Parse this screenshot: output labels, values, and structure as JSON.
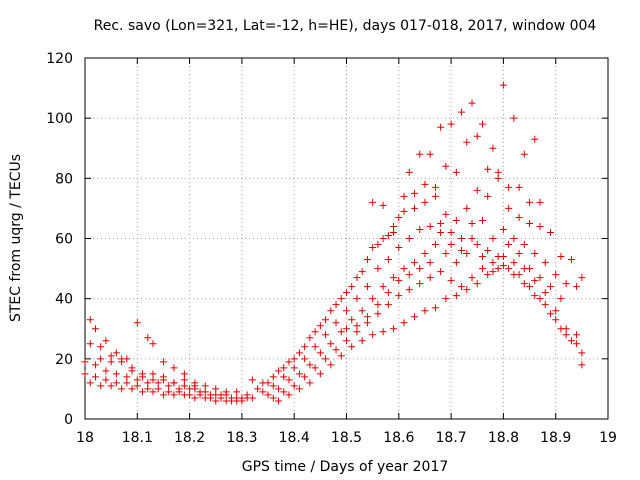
{
  "chart_data": {
    "type": "scatter",
    "title": "Rec. savo (Lon=321, Lat=-12, h=HE), days 017-018, 2017, window 004",
    "xlabel": "GPS time / Days of year 2017",
    "ylabel": "STEC from uqrg / TECUs",
    "xlim": [
      18,
      19
    ],
    "ylim": [
      0,
      120
    ],
    "x_ticks": [
      18,
      18.1,
      18.2,
      18.3,
      18.4,
      18.5,
      18.6,
      18.7,
      18.8,
      18.9,
      19
    ],
    "x_tick_labels": [
      "18",
      "18.1",
      "18.2",
      "18.3",
      "18.4",
      "18.5",
      "18.6",
      "18.7",
      "18.8",
      "18.9",
      "19"
    ],
    "y_ticks": [
      0,
      20,
      40,
      60,
      80,
      100,
      120
    ],
    "y_tick_labels": [
      "0",
      "20",
      "40",
      "60",
      "80",
      "100",
      "120"
    ],
    "grid": true,
    "marker": "+",
    "color": "#e00000",
    "series": [
      {
        "points": [
          [
            18.01,
            33
          ],
          [
            18.02,
            30
          ],
          [
            18.04,
            26
          ],
          [
            18.06,
            22
          ],
          [
            18.08,
            20
          ],
          [
            18.1,
            32
          ],
          [
            18.12,
            27
          ],
          [
            18.13,
            25
          ],
          [
            18.15,
            19
          ],
          [
            18.17,
            17
          ],
          [
            18.19,
            15
          ],
          [
            18.21,
            12
          ],
          [
            18.23,
            11
          ],
          [
            18.25,
            10
          ],
          [
            18.27,
            9
          ],
          [
            18.29,
            9
          ],
          [
            18.31,
            8
          ],
          [
            18.32,
            7
          ],
          [
            18.01,
            25
          ],
          [
            18.03,
            24
          ],
          [
            18.05,
            21
          ],
          [
            18.07,
            19
          ],
          [
            18.09,
            17
          ],
          [
            18.11,
            15
          ],
          [
            18.13,
            15
          ],
          [
            18.15,
            13
          ],
          [
            18.17,
            12
          ],
          [
            18.19,
            11
          ],
          [
            18.21,
            10
          ],
          [
            18.23,
            9
          ],
          [
            18.25,
            8
          ],
          [
            18.27,
            8
          ],
          [
            18.29,
            7
          ],
          [
            18.31,
            7
          ],
          [
            18.0,
            19
          ],
          [
            18.02,
            18
          ],
          [
            18.04,
            16
          ],
          [
            18.06,
            15
          ],
          [
            18.08,
            14
          ],
          [
            18.1,
            13
          ],
          [
            18.12,
            12
          ],
          [
            18.14,
            12
          ],
          [
            18.16,
            11
          ],
          [
            18.18,
            10
          ],
          [
            18.2,
            10
          ],
          [
            18.22,
            9
          ],
          [
            18.24,
            8
          ],
          [
            18.26,
            8
          ],
          [
            18.28,
            7
          ],
          [
            18.3,
            7
          ],
          [
            18.0,
            15
          ],
          [
            18.02,
            14
          ],
          [
            18.04,
            13
          ],
          [
            18.06,
            12
          ],
          [
            18.08,
            12
          ],
          [
            18.1,
            11
          ],
          [
            18.12,
            10
          ],
          [
            18.14,
            10
          ],
          [
            18.16,
            9
          ],
          [
            18.18,
            9
          ],
          [
            18.2,
            8
          ],
          [
            18.22,
            8
          ],
          [
            18.24,
            7
          ],
          [
            18.26,
            7
          ],
          [
            18.28,
            6
          ],
          [
            18.3,
            6
          ],
          [
            18.01,
            12
          ],
          [
            18.03,
            11
          ],
          [
            18.05,
            11
          ],
          [
            18.07,
            10
          ],
          [
            18.09,
            10
          ],
          [
            18.11,
            9
          ],
          [
            18.13,
            9
          ],
          [
            18.15,
            8
          ],
          [
            18.17,
            8
          ],
          [
            18.19,
            8
          ],
          [
            18.21,
            7
          ],
          [
            18.23,
            7
          ],
          [
            18.25,
            6
          ],
          [
            18.27,
            6
          ],
          [
            18.29,
            6
          ],
          [
            18.03,
            20
          ],
          [
            18.05,
            19
          ],
          [
            18.07,
            20
          ],
          [
            18.09,
            16
          ],
          [
            18.11,
            14
          ],
          [
            18.13,
            13
          ],
          [
            18.15,
            14
          ],
          [
            18.17,
            12
          ],
          [
            18.19,
            13
          ],
          [
            18.21,
            11
          ],
          [
            18.32,
            13
          ],
          [
            18.34,
            12
          ],
          [
            18.36,
            14
          ],
          [
            18.38,
            17
          ],
          [
            18.4,
            20
          ],
          [
            18.42,
            24
          ],
          [
            18.44,
            29
          ],
          [
            18.46,
            33
          ],
          [
            18.48,
            38
          ],
          [
            18.5,
            42
          ],
          [
            18.52,
            47
          ],
          [
            18.54,
            53
          ],
          [
            18.56,
            58
          ],
          [
            18.58,
            61
          ],
          [
            18.6,
            67
          ],
          [
            18.62,
            82
          ],
          [
            18.64,
            88
          ],
          [
            18.66,
            88
          ],
          [
            18.68,
            97
          ],
          [
            18.7,
            98
          ],
          [
            18.72,
            102
          ],
          [
            18.74,
            105
          ],
          [
            18.76,
            98
          ],
          [
            18.78,
            90
          ],
          [
            18.8,
            111
          ],
          [
            18.82,
            100
          ],
          [
            18.84,
            88
          ],
          [
            18.86,
            93
          ],
          [
            18.33,
            10
          ],
          [
            18.35,
            12
          ],
          [
            18.37,
            16
          ],
          [
            18.39,
            19
          ],
          [
            18.41,
            22
          ],
          [
            18.43,
            27
          ],
          [
            18.45,
            31
          ],
          [
            18.47,
            36
          ],
          [
            18.49,
            40
          ],
          [
            18.51,
            44
          ],
          [
            18.53,
            49
          ],
          [
            18.55,
            57
          ],
          [
            18.57,
            60
          ],
          [
            18.59,
            64
          ],
          [
            18.61,
            69
          ],
          [
            18.63,
            70
          ],
          [
            18.65,
            72
          ],
          [
            18.67,
            77
          ],
          [
            18.69,
            68
          ],
          [
            18.71,
            66
          ],
          [
            18.73,
            70
          ],
          [
            18.75,
            76
          ],
          [
            18.77,
            74
          ],
          [
            18.79,
            80
          ],
          [
            18.81,
            77
          ],
          [
            18.83,
            77
          ],
          [
            18.85,
            72
          ],
          [
            18.87,
            72
          ],
          [
            18.89,
            62
          ],
          [
            18.91,
            54
          ],
          [
            18.93,
            53
          ],
          [
            18.95,
            47
          ],
          [
            18.34,
            9
          ],
          [
            18.36,
            11
          ],
          [
            18.38,
            14
          ],
          [
            18.4,
            17
          ],
          [
            18.42,
            20
          ],
          [
            18.44,
            24
          ],
          [
            18.46,
            28
          ],
          [
            18.48,
            32
          ],
          [
            18.5,
            36
          ],
          [
            18.52,
            40
          ],
          [
            18.54,
            44
          ],
          [
            18.56,
            50
          ],
          [
            18.58,
            53
          ],
          [
            18.6,
            57
          ],
          [
            18.62,
            60
          ],
          [
            18.64,
            63
          ],
          [
            18.66,
            64
          ],
          [
            18.68,
            65
          ],
          [
            18.7,
            62
          ],
          [
            18.72,
            60
          ],
          [
            18.74,
            65
          ],
          [
            18.76,
            66
          ],
          [
            18.78,
            60
          ],
          [
            18.8,
            63
          ],
          [
            18.82,
            60
          ],
          [
            18.84,
            58
          ],
          [
            18.86,
            55
          ],
          [
            18.88,
            52
          ],
          [
            18.9,
            48
          ],
          [
            18.92,
            45
          ],
          [
            18.94,
            44
          ],
          [
            18.35,
            8
          ],
          [
            18.37,
            10
          ],
          [
            18.39,
            13
          ],
          [
            18.41,
            15
          ],
          [
            18.43,
            18
          ],
          [
            18.45,
            22
          ],
          [
            18.47,
            25
          ],
          [
            18.49,
            29
          ],
          [
            18.51,
            33
          ],
          [
            18.53,
            36
          ],
          [
            18.55,
            40
          ],
          [
            18.57,
            44
          ],
          [
            18.59,
            47
          ],
          [
            18.61,
            50
          ],
          [
            18.63,
            52
          ],
          [
            18.65,
            55
          ],
          [
            18.67,
            58
          ],
          [
            18.69,
            55
          ],
          [
            18.71,
            52
          ],
          [
            18.73,
            55
          ],
          [
            18.75,
            58
          ],
          [
            18.77,
            56
          ],
          [
            18.79,
            54
          ],
          [
            18.81,
            58
          ],
          [
            18.83,
            55
          ],
          [
            18.85,
            50
          ],
          [
            18.87,
            47
          ],
          [
            18.89,
            44
          ],
          [
            18.91,
            40
          ],
          [
            18.36,
            7
          ],
          [
            18.38,
            9
          ],
          [
            18.4,
            11
          ],
          [
            18.42,
            14
          ],
          [
            18.44,
            17
          ],
          [
            18.46,
            20
          ],
          [
            18.48,
            23
          ],
          [
            18.5,
            26
          ],
          [
            18.52,
            29
          ],
          [
            18.54,
            32
          ],
          [
            18.56,
            35
          ],
          [
            18.58,
            38
          ],
          [
            18.6,
            41
          ],
          [
            18.62,
            43
          ],
          [
            18.64,
            45
          ],
          [
            18.66,
            47
          ],
          [
            18.68,
            49
          ],
          [
            18.7,
            46
          ],
          [
            18.72,
            44
          ],
          [
            18.74,
            47
          ],
          [
            18.76,
            50
          ],
          [
            18.78,
            49
          ],
          [
            18.8,
            51
          ],
          [
            18.82,
            48
          ],
          [
            18.84,
            45
          ],
          [
            18.86,
            41
          ],
          [
            18.88,
            38
          ],
          [
            18.9,
            33
          ],
          [
            18.92,
            28
          ],
          [
            18.94,
            25
          ],
          [
            18.37,
            6
          ],
          [
            18.39,
            8
          ],
          [
            18.41,
            10
          ],
          [
            18.43,
            12
          ],
          [
            18.45,
            15
          ],
          [
            18.47,
            18
          ],
          [
            18.49,
            21
          ],
          [
            18.51,
            24
          ],
          [
            18.53,
            26
          ],
          [
            18.55,
            28
          ],
          [
            18.57,
            29
          ],
          [
            18.59,
            30
          ],
          [
            18.61,
            32
          ],
          [
            18.63,
            34
          ],
          [
            18.65,
            36
          ],
          [
            18.67,
            37
          ],
          [
            18.69,
            40
          ],
          [
            18.71,
            41
          ],
          [
            18.73,
            43
          ],
          [
            18.75,
            45
          ],
          [
            18.77,
            48
          ],
          [
            18.79,
            50
          ],
          [
            18.81,
            50
          ],
          [
            18.83,
            48
          ],
          [
            18.85,
            44
          ],
          [
            18.87,
            40
          ],
          [
            18.89,
            35
          ],
          [
            18.91,
            30
          ],
          [
            18.93,
            26
          ],
          [
            18.95,
            22
          ],
          [
            18.5,
            30
          ],
          [
            18.52,
            31
          ],
          [
            18.54,
            34
          ],
          [
            18.56,
            38
          ],
          [
            18.58,
            42
          ],
          [
            18.6,
            46
          ],
          [
            18.62,
            48
          ],
          [
            18.64,
            50
          ],
          [
            18.66,
            52
          ],
          [
            18.68,
            62
          ],
          [
            18.7,
            58
          ],
          [
            18.72,
            56
          ],
          [
            18.74,
            60
          ],
          [
            18.76,
            54
          ],
          [
            18.78,
            52
          ],
          [
            18.8,
            54
          ],
          [
            18.82,
            52
          ],
          [
            18.84,
            50
          ],
          [
            18.86,
            46
          ],
          [
            18.88,
            42
          ],
          [
            18.9,
            36
          ],
          [
            18.92,
            30
          ],
          [
            18.94,
            28
          ],
          [
            18.95,
            18
          ],
          [
            18.55,
            72
          ],
          [
            18.57,
            71
          ],
          [
            18.59,
            62
          ],
          [
            18.61,
            74
          ],
          [
            18.63,
            75
          ],
          [
            18.65,
            78
          ],
          [
            18.67,
            74
          ],
          [
            18.69,
            84
          ],
          [
            18.71,
            82
          ],
          [
            18.73,
            92
          ],
          [
            18.75,
            94
          ],
          [
            18.77,
            83
          ],
          [
            18.79,
            82
          ],
          [
            18.81,
            70
          ],
          [
            18.83,
            67
          ],
          [
            18.85,
            65
          ],
          [
            18.87,
            64
          ]
        ]
      }
    ]
  }
}
